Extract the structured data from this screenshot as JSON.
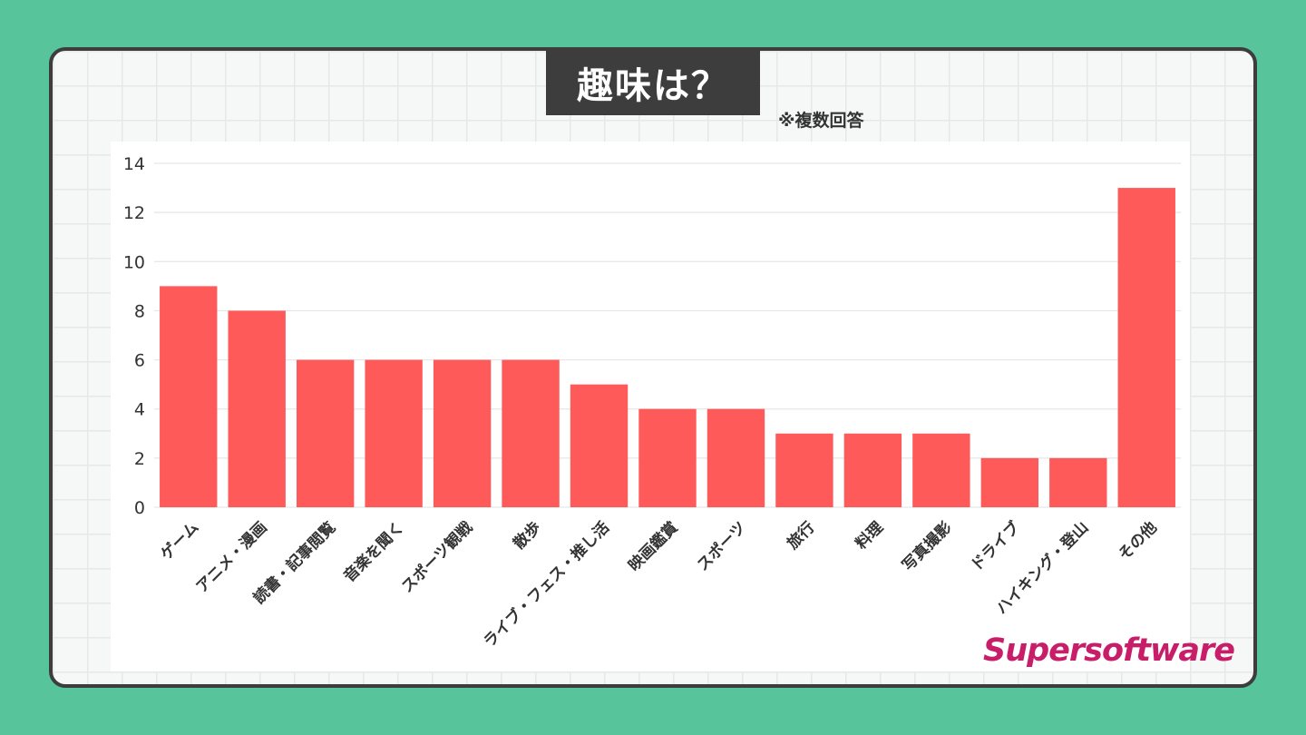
{
  "title": "趣味は？",
  "note": "※複数回答",
  "logo": "Supersoftware",
  "colors": {
    "background": "#57c49c",
    "bar": "#ff5a5a",
    "title_bg": "#3d3d3d",
    "logo": "#c81e6a"
  },
  "chart_data": {
    "type": "bar",
    "title": "趣味は？",
    "xlabel": "",
    "ylabel": "",
    "ylim": [
      0,
      14
    ],
    "yticks": [
      0,
      2,
      4,
      6,
      8,
      10,
      12,
      14
    ],
    "grid": true,
    "categories": [
      "ゲーム",
      "アニメ・漫画",
      "読書・記事閲覧",
      "音楽を聞く",
      "スポーツ観戦",
      "散歩",
      "ライブ・フェス・推し活",
      "映画鑑賞",
      "スポーツ",
      "旅行",
      "料理",
      "写真撮影",
      "ドライブ",
      "ハイキング・登山",
      "その他"
    ],
    "values": [
      9,
      8,
      6,
      6,
      6,
      6,
      5,
      4,
      4,
      3,
      3,
      3,
      2,
      2,
      13
    ]
  }
}
